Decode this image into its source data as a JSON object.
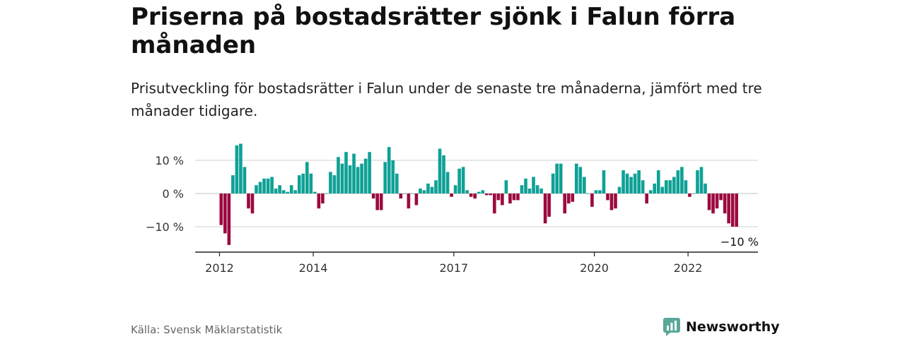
{
  "title": "Priserna på bostadsrätter sjönk i Falun förra månaden",
  "subtitle": "Prisutveckling för bostadsrätter i Falun under de senaste tre månaderna, jämfört med tre månader tidigare.",
  "source": "Källa: Svensk Mäklarstatistik",
  "brand": {
    "name": "Newsworthy",
    "icon": "newsworthy-logo-icon",
    "color": "#5aa89a"
  },
  "colors": {
    "positive": "#0fa196",
    "negative": "#9b0a3f",
    "grid": "#d9d9d9",
    "axis": "#222222"
  },
  "chart_data": {
    "type": "bar",
    "title": "",
    "xlabel": "",
    "ylabel": "",
    "ylim": [
      -17,
      17
    ],
    "yticks": [
      10,
      0,
      -10
    ],
    "ytick_labels": [
      "10 %",
      "0 %",
      "−10 %"
    ],
    "xticks": [
      2012,
      2014,
      2017,
      2020,
      2022
    ],
    "xtick_labels": [
      "2012",
      "2014",
      "2017",
      "2020",
      "2022"
    ],
    "grid": true,
    "annotation": "−10 %",
    "start": "2012-01",
    "values": [
      -9.5,
      -12,
      -15.5,
      5.5,
      14.5,
      15,
      8,
      -4.5,
      -6,
      2.5,
      3.5,
      4.5,
      4.5,
      5,
      1.5,
      2.5,
      1,
      0.5,
      2.5,
      1,
      5.5,
      6,
      9.5,
      6,
      0.5,
      -4.5,
      -3,
      0,
      6.5,
      5.5,
      11,
      9,
      12.5,
      8.5,
      12,
      8,
      9,
      10.5,
      12.5,
      -1.5,
      -5,
      -5,
      9.5,
      14,
      10,
      6,
      -1.5,
      0,
      -4.5,
      0,
      -3.5,
      1.5,
      1,
      3,
      2,
      4,
      13.5,
      11.5,
      6.5,
      -1,
      2.5,
      7.5,
      8,
      1,
      -1,
      -1.5,
      0.5,
      1,
      -0.5,
      -0.5,
      -6,
      -2,
      -3.5,
      4,
      -3,
      -2,
      -2,
      2.5,
      4.5,
      1.5,
      5,
      2.5,
      1.5,
      -9,
      -7,
      6,
      9,
      9,
      -6,
      -3,
      -2.5,
      9,
      8,
      5,
      0,
      -4,
      1,
      1,
      7,
      -2,
      -5,
      -4.5,
      2,
      7,
      6,
      5,
      6,
      7,
      4,
      -3,
      1,
      3,
      7,
      2,
      4,
      4,
      5,
      7,
      8,
      4,
      -1,
      0,
      7,
      8,
      3,
      -5,
      -6,
      -4.5,
      -2,
      -6,
      -9,
      -10,
      -10
    ]
  }
}
